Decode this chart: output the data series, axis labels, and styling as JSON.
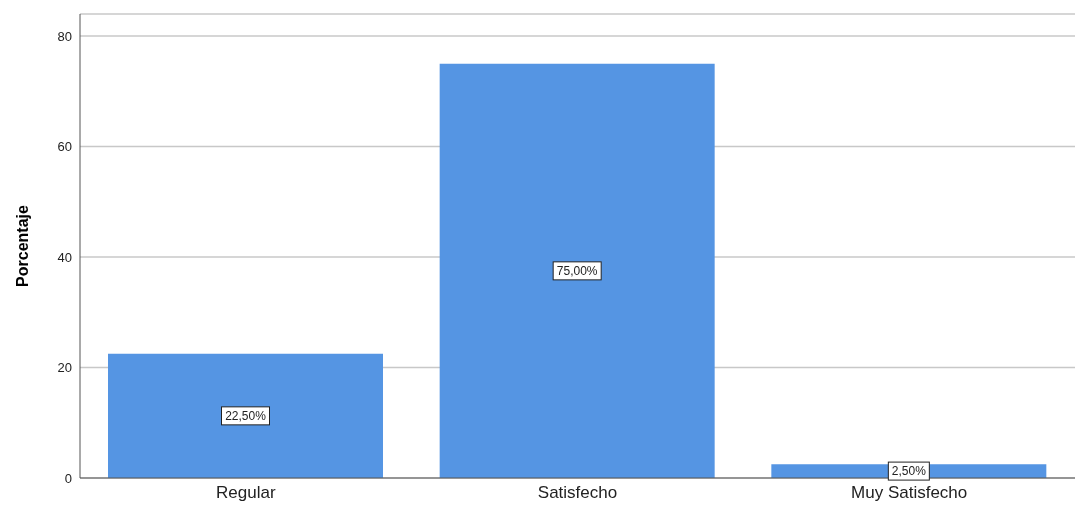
{
  "chart_data": {
    "type": "bar",
    "ylabel": "Porcentaje",
    "categories": [
      "Regular",
      "Satisfecho",
      "Muy Satisfecho"
    ],
    "values": [
      22.5,
      75,
      2.5
    ],
    "value_labels": [
      "22,50%",
      "75,00%",
      "2,50%"
    ],
    "color": "#5595e3",
    "ylim": [
      0,
      84
    ],
    "yticks": [
      0,
      20,
      40,
      60,
      80
    ],
    "grid": "y"
  }
}
